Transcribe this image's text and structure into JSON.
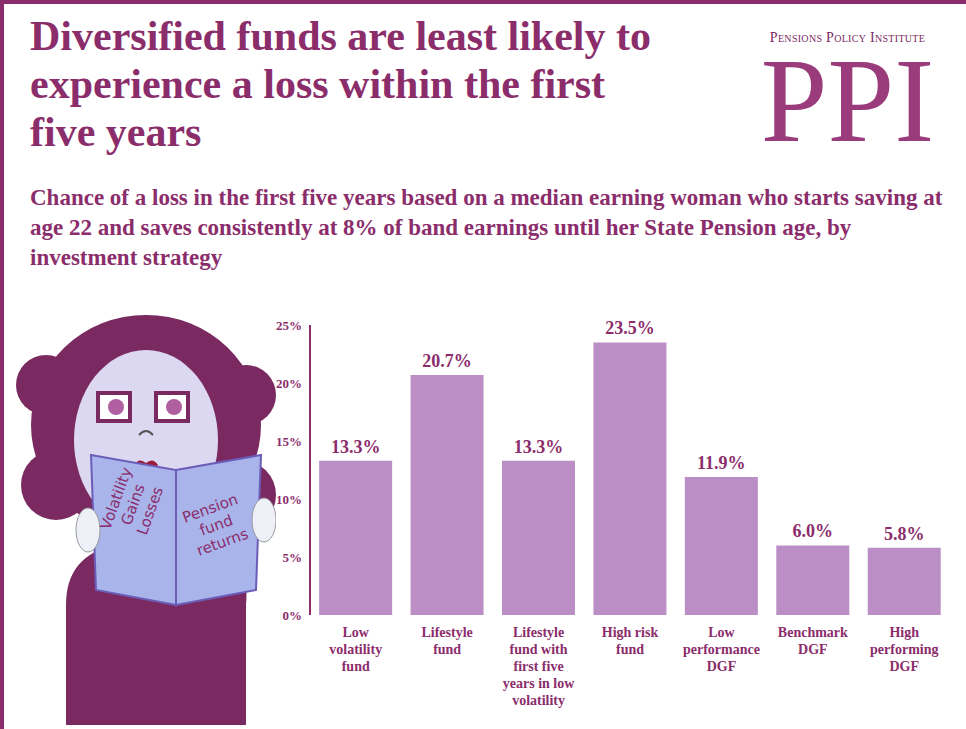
{
  "chart_data": {
    "type": "bar",
    "title": "Diversified funds are least likely to experience a loss within the first five years",
    "subtitle": "Chance of a loss in the first five years based on a median earning woman who starts saving at age 22 and saves consistently at 8% of band earnings until her State Pension age, by investment strategy",
    "categories": [
      "Low volatility fund",
      "Lifestyle fund",
      "Lifestyle fund with first five years in low volatility",
      "High risk fund",
      "Low performance DGF",
      "Benchmark DGF",
      "High performing DGF"
    ],
    "values": [
      13.3,
      20.7,
      13.3,
      23.5,
      11.9,
      6.0,
      5.8
    ],
    "value_labels": [
      "13.3%",
      "20.7%",
      "13.3%",
      "23.5%",
      "11.9%",
      "6.0%",
      "5.8%"
    ],
    "color": "#bb8fc6",
    "ylim": [
      0,
      25
    ],
    "yticks": [
      {
        "value": 0,
        "label": "0%"
      },
      {
        "value": 5,
        "label": "5%"
      },
      {
        "value": 10,
        "label": "10%"
      },
      {
        "value": 15,
        "label": "15%"
      },
      {
        "value": 20,
        "label": "20%"
      },
      {
        "value": 25,
        "label": "25%"
      }
    ],
    "grid": false,
    "data_labels": true
  },
  "logo": {
    "name": "Pensions Policy Institute",
    "letters": "PPI"
  },
  "book": {
    "left_page": [
      "Volatility",
      "Gains",
      "Losses"
    ],
    "right_page": [
      "Pension",
      "fund",
      "returns"
    ]
  }
}
